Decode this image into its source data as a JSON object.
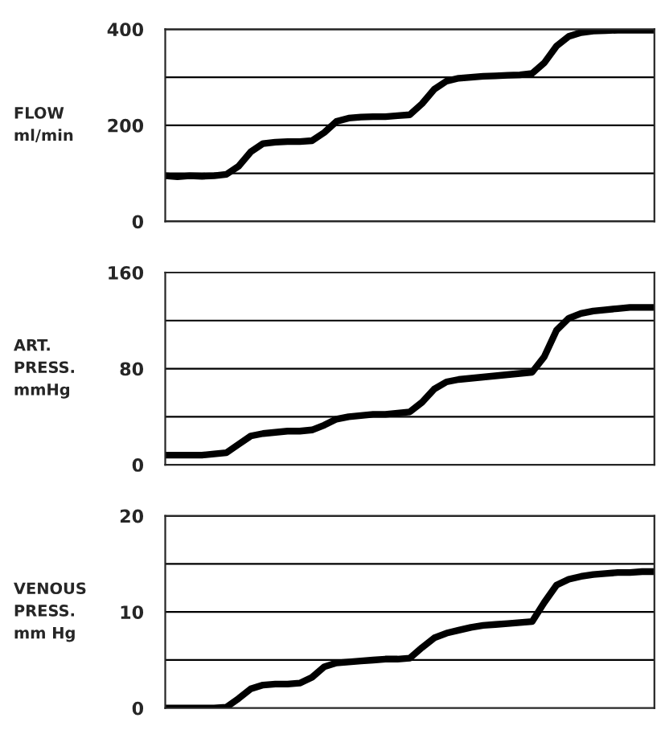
{
  "chart_data": [
    {
      "type": "line",
      "ylabel": "FLOW\nml/min",
      "categories": [
        null,
        null,
        null,
        null,
        null,
        null,
        null,
        null,
        null,
        null,
        null,
        null,
        null,
        null,
        null,
        null,
        null,
        null,
        null,
        null,
        null,
        null,
        null,
        null,
        null,
        null,
        null,
        null,
        null,
        null,
        null,
        null,
        null,
        null,
        null,
        null,
        null,
        null,
        null,
        null,
        null
      ],
      "series": [
        {
          "color": "#000000",
          "values": [
            95,
            93,
            95,
            94,
            95,
            98,
            115,
            145,
            162,
            165,
            166,
            166,
            168,
            185,
            208,
            215,
            217,
            218,
            218,
            220,
            222,
            245,
            275,
            292,
            298,
            300,
            302,
            303,
            304,
            305,
            308,
            330,
            365,
            385,
            393,
            396,
            397,
            398,
            398,
            398,
            398
          ]
        }
      ],
      "ylim": [
        0,
        400
      ],
      "yticks": [
        0,
        {
          "value": 100,
          "label": null
        },
        200,
        {
          "value": 300,
          "label": null
        },
        400
      ],
      "grid": "y",
      "tick_labels": "y"
    },
    {
      "type": "line",
      "ylabel": "ART.\nPRESS.\nmmHg",
      "categories": [
        null,
        null,
        null,
        null,
        null,
        null,
        null,
        null,
        null,
        null,
        null,
        null,
        null,
        null,
        null,
        null,
        null,
        null,
        null,
        null,
        null,
        null,
        null,
        null,
        null,
        null,
        null,
        null,
        null,
        null,
        null,
        null,
        null,
        null,
        null,
        null,
        null,
        null,
        null,
        null,
        null
      ],
      "series": [
        {
          "color": "#000000",
          "values": [
            8,
            8,
            8,
            8,
            9,
            10,
            17,
            24,
            26,
            27,
            28,
            28,
            29,
            33,
            38,
            40,
            41,
            42,
            42,
            43,
            44,
            52,
            63,
            69,
            71,
            72,
            73,
            74,
            75,
            76,
            77,
            90,
            112,
            122,
            126,
            128,
            129,
            130,
            131,
            131,
            131
          ]
        }
      ],
      "ylim": [
        0,
        160
      ],
      "yticks": [
        0,
        {
          "value": 40,
          "label": null
        },
        80,
        {
          "value": 120,
          "label": null
        },
        160
      ],
      "grid": "y",
      "tick_labels": "y"
    },
    {
      "type": "line",
      "ylabel": "VENOUS\nPRESS.\nmm Hg",
      "categories": [
        null,
        null,
        null,
        null,
        null,
        null,
        null,
        null,
        null,
        null,
        null,
        null,
        null,
        null,
        null,
        null,
        null,
        null,
        null,
        null,
        null,
        null,
        null,
        null,
        null,
        null,
        null,
        null,
        null,
        null,
        null,
        null,
        null,
        null,
        null,
        null,
        null,
        null,
        null,
        null,
        null
      ],
      "series": [
        {
          "color": "#000000",
          "values": [
            0,
            0,
            0,
            0,
            0,
            0.1,
            1,
            2,
            2.4,
            2.5,
            2.5,
            2.6,
            3.2,
            4.3,
            4.7,
            4.8,
            4.9,
            5,
            5.1,
            5.1,
            5.2,
            6.3,
            7.3,
            7.8,
            8.1,
            8.4,
            8.6,
            8.7,
            8.8,
            8.9,
            9,
            11,
            12.8,
            13.4,
            13.7,
            13.9,
            14,
            14.1,
            14.1,
            14.2,
            14.2
          ]
        }
      ],
      "ylim": [
        0,
        20
      ],
      "yticks": [
        0,
        {
          "value": 5,
          "label": null
        },
        10,
        {
          "value": 15,
          "label": null
        },
        20
      ],
      "grid": "y",
      "tick_labels": "y"
    }
  ]
}
